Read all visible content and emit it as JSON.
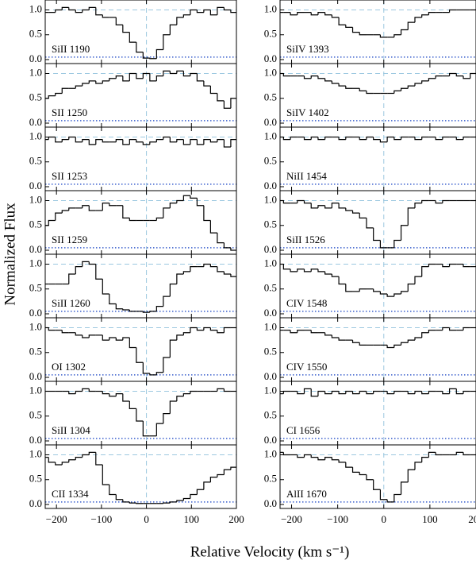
{
  "chart_data": {
    "type": "line",
    "y_label": "Normalized Flux",
    "x_label": "Relative Velocity  (km s⁻¹)",
    "x": [
      -225,
      -210,
      -195,
      -180,
      -165,
      -150,
      -135,
      -120,
      -105,
      -90,
      -75,
      -60,
      -45,
      -30,
      -15,
      0,
      15,
      30,
      45,
      60,
      75,
      90,
      105,
      120,
      135,
      150,
      165,
      180,
      195
    ],
    "xlim": [
      -225,
      200
    ],
    "xticks": [
      {
        "value": -200,
        "label": "−200"
      },
      {
        "value": -100,
        "label": "−100"
      },
      0,
      100,
      200
    ],
    "ylim": [
      -0.08,
      1.2
    ],
    "yticks": [
      {
        "value": 0,
        "label": "0.0"
      },
      {
        "value": 0.5,
        "label": "0.5"
      },
      {
        "value": 1,
        "label": "1.0"
      }
    ],
    "continuum": 1,
    "line_center": 0,
    "noise": 0.05,
    "color": "#000000",
    "reference_color": "#9cc8e0",
    "noise_color": "#3a5fcd",
    "series": [
      {
        "name": "SiII 1190",
        "values": [
          0.95,
          0.95,
          1.0,
          1.05,
          1.0,
          0.95,
          1.0,
          1.05,
          0.9,
          0.85,
          0.85,
          0.7,
          0.55,
          0.35,
          0.15,
          0.03,
          0.02,
          0.2,
          0.5,
          0.7,
          0.85,
          0.9,
          1.0,
          0.95,
          1.0,
          0.9,
          1.05,
          1.0,
          0.95
        ]
      },
      {
        "name": "SII 1250",
        "values": [
          0.5,
          0.55,
          0.6,
          0.7,
          0.7,
          0.75,
          0.8,
          0.85,
          0.8,
          0.85,
          0.9,
          0.95,
          0.85,
          1.0,
          0.9,
          1.0,
          0.85,
          0.95,
          1.05,
          1.0,
          1.05,
          0.95,
          1.0,
          0.85,
          0.75,
          0.6,
          0.45,
          0.3,
          0.5
        ]
      },
      {
        "name": "SII 1253",
        "values": [
          0.95,
          1.0,
          0.9,
          0.95,
          1.0,
          0.9,
          0.95,
          0.85,
          0.95,
          0.9,
          0.9,
          0.95,
          0.85,
          0.95,
          0.9,
          0.85,
          0.9,
          0.95,
          1.0,
          0.9,
          0.95,
          0.85,
          0.95,
          0.85,
          0.95,
          0.9,
          0.95,
          0.8,
          0.95
        ]
      },
      {
        "name": "SII 1259",
        "values": [
          0.5,
          0.6,
          0.75,
          0.8,
          0.85,
          0.85,
          0.9,
          0.8,
          0.8,
          0.95,
          0.9,
          0.9,
          0.65,
          0.6,
          0.6,
          0.6,
          0.6,
          0.65,
          0.85,
          0.95,
          1.0,
          1.1,
          1.05,
          0.9,
          0.6,
          0.35,
          0.15,
          0.05,
          0.0
        ]
      },
      {
        "name": "SiII 1260",
        "values": [
          0.6,
          0.6,
          0.6,
          0.6,
          0.8,
          0.95,
          1.05,
          1.0,
          0.7,
          0.4,
          0.2,
          0.1,
          0.08,
          0.05,
          0.05,
          0.03,
          0.05,
          0.15,
          0.35,
          0.6,
          0.8,
          0.85,
          0.95,
          0.95,
          1.0,
          0.95,
          0.85,
          0.8,
          0.75
        ]
      },
      {
        "name": "OI 1302",
        "values": [
          1.0,
          0.95,
          0.95,
          0.9,
          0.9,
          0.85,
          0.8,
          0.85,
          0.85,
          0.75,
          0.8,
          0.75,
          0.8,
          0.6,
          0.3,
          0.08,
          0.05,
          0.1,
          0.4,
          0.75,
          0.85,
          0.9,
          1.0,
          0.95,
          1.0,
          0.95,
          0.9,
          1.0,
          1.0
        ]
      },
      {
        "name": "SiII 1304",
        "values": [
          1.0,
          1.0,
          1.0,
          1.0,
          0.95,
          1.0,
          1.05,
          1.0,
          1.0,
          0.95,
          0.9,
          0.95,
          0.8,
          0.65,
          0.4,
          0.1,
          0.1,
          0.35,
          0.55,
          0.8,
          0.9,
          0.95,
          1.0,
          1.0,
          1.0,
          1.0,
          1.05,
          1.0,
          1.0
        ]
      },
      {
        "name": "CII 1334",
        "values": [
          0.95,
          0.85,
          0.8,
          0.85,
          0.9,
          0.95,
          1.0,
          1.05,
          0.8,
          0.4,
          0.2,
          0.1,
          0.05,
          0.03,
          0.02,
          0.02,
          0.02,
          0.02,
          0.03,
          0.05,
          0.08,
          0.12,
          0.2,
          0.3,
          0.45,
          0.55,
          0.6,
          0.7,
          0.75
        ]
      },
      {
        "name": "SiIV 1393",
        "values": [
          0.95,
          0.95,
          0.9,
          0.95,
          0.95,
          0.9,
          0.95,
          0.9,
          0.85,
          0.7,
          0.65,
          0.55,
          0.5,
          0.5,
          0.5,
          0.45,
          0.45,
          0.5,
          0.6,
          0.75,
          0.85,
          0.9,
          0.95,
          0.95,
          0.95,
          1.0,
          1.0,
          1.0,
          1.0
        ]
      },
      {
        "name": "SiIV 1402",
        "values": [
          1.0,
          0.95,
          0.95,
          0.95,
          0.9,
          0.95,
          0.9,
          0.85,
          0.8,
          0.75,
          0.7,
          0.7,
          0.65,
          0.6,
          0.6,
          0.6,
          0.6,
          0.65,
          0.7,
          0.75,
          0.8,
          0.85,
          0.9,
          0.95,
          0.95,
          1.0,
          0.95,
          0.9,
          1.0
        ]
      },
      {
        "name": "NiII 1454",
        "values": [
          1.0,
          0.95,
          1.0,
          1.0,
          0.95,
          1.0,
          0.95,
          1.0,
          1.0,
          0.95,
          1.0,
          1.0,
          0.95,
          1.0,
          0.95,
          0.9,
          1.0,
          0.95,
          1.0,
          1.0,
          0.95,
          1.0,
          1.0,
          0.95,
          1.0,
          1.0,
          0.95,
          1.0,
          1.0
        ]
      },
      {
        "name": "SiII 1526",
        "values": [
          1.0,
          0.95,
          0.95,
          1.0,
          0.95,
          0.85,
          0.9,
          0.85,
          0.95,
          0.85,
          0.8,
          0.75,
          0.65,
          0.45,
          0.2,
          0.05,
          0.05,
          0.2,
          0.5,
          0.85,
          0.95,
          1.0,
          1.0,
          0.95,
          1.0,
          1.0,
          1.0,
          1.0,
          1.0
        ]
      },
      {
        "name": "CIV 1548",
        "values": [
          1.0,
          0.9,
          0.85,
          0.9,
          0.85,
          0.9,
          0.85,
          0.8,
          0.75,
          0.6,
          0.45,
          0.45,
          0.5,
          0.5,
          0.45,
          0.4,
          0.35,
          0.4,
          0.45,
          0.6,
          0.75,
          0.95,
          1.0,
          1.0,
          0.95,
          1.0,
          1.0,
          0.95,
          0.95
        ]
      },
      {
        "name": "CIV 1550",
        "values": [
          0.95,
          0.95,
          0.9,
          0.95,
          0.95,
          0.9,
          0.9,
          0.85,
          0.8,
          0.75,
          0.75,
          0.7,
          0.65,
          0.65,
          0.65,
          0.65,
          0.6,
          0.65,
          0.7,
          0.75,
          0.8,
          0.9,
          0.95,
          0.95,
          1.0,
          0.95,
          0.95,
          1.0,
          1.0
        ]
      },
      {
        "name": "CI 1656",
        "values": [
          0.95,
          1.0,
          1.0,
          0.95,
          1.05,
          0.9,
          1.0,
          0.95,
          1.0,
          0.95,
          1.0,
          0.95,
          1.0,
          0.95,
          1.0,
          1.0,
          0.95,
          1.0,
          1.0,
          0.95,
          1.0,
          0.95,
          1.0,
          1.0,
          0.95,
          1.05,
          0.95,
          1.0,
          1.0
        ]
      },
      {
        "name": "AlII 1670",
        "values": [
          1.05,
          1.0,
          1.0,
          0.95,
          1.0,
          0.95,
          0.9,
          0.95,
          0.9,
          0.85,
          0.75,
          0.65,
          0.6,
          0.5,
          0.3,
          0.1,
          0.05,
          0.2,
          0.45,
          0.7,
          0.85,
          0.95,
          1.05,
          1.0,
          1.0,
          1.0,
          1.05,
          1.0,
          1.0
        ]
      }
    ]
  }
}
